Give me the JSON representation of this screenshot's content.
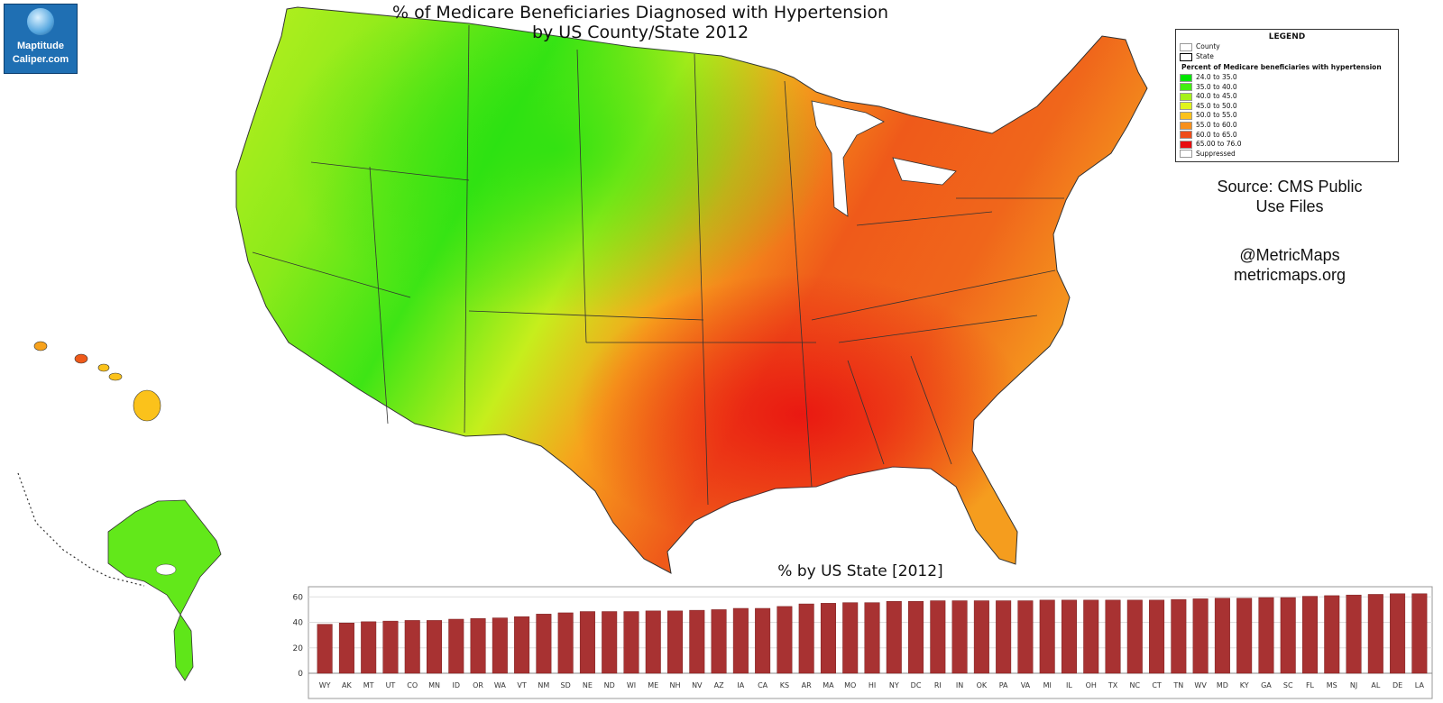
{
  "logo": {
    "line1": "Maptitude",
    "line2": "Caliper.com"
  },
  "title": {
    "line1": "% of Medicare Beneficiaries Diagnosed with Hypertension",
    "line2": "by US County/State 2012"
  },
  "legend": {
    "title": "LEGEND",
    "boundary_items": [
      "County",
      "State"
    ],
    "heading": "Percent of Medicare beneficiaries with hypertension",
    "classes": [
      {
        "label": "24.0  to 35.0",
        "color": "#00e600"
      },
      {
        "label": "35.0 to 40.0",
        "color": "#44ee11"
      },
      {
        "label": "40.0 to 45.0",
        "color": "#a6f21a"
      },
      {
        "label": "45.0 to 50.0",
        "color": "#e0f51c"
      },
      {
        "label": "50.0 to 55.0",
        "color": "#fbc21b"
      },
      {
        "label": "55.0 to 60.0",
        "color": "#f7901c"
      },
      {
        "label": "60.0 to 65.0",
        "color": "#ef4c1a"
      },
      {
        "label": "65.00 to 76.0",
        "color": "#e80c10"
      },
      {
        "label": "Suppressed",
        "color": "#ffffff"
      }
    ]
  },
  "source": {
    "line1": "Source: CMS Public",
    "line2": "Use Files"
  },
  "handle": {
    "line1": "@MetricMaps",
    "line2": "metricmaps.org"
  },
  "chart_data": {
    "type": "bar",
    "title": "% by US State [2012]",
    "categories": [
      "WY",
      "AK",
      "MT",
      "UT",
      "CO",
      "MN",
      "ID",
      "OR",
      "WA",
      "VT",
      "NM",
      "SD",
      "NE",
      "ND",
      "WI",
      "ME",
      "NH",
      "NV",
      "AZ",
      "IA",
      "CA",
      "KS",
      "AR",
      "MA",
      "MO",
      "HI",
      "NY",
      "DC",
      "RI",
      "IN",
      "OK",
      "PA",
      "VA",
      "MI",
      "IL",
      "OH",
      "TX",
      "NC",
      "CT",
      "TN",
      "WV",
      "MD",
      "KY",
      "GA",
      "SC",
      "FL",
      "MS",
      "NJ",
      "AL",
      "DE",
      "LA"
    ],
    "values": [
      38.5,
      39.5,
      40.5,
      41,
      41.5,
      41.5,
      42.5,
      43,
      43.5,
      44.5,
      46.5,
      47.5,
      48.5,
      48.5,
      48.5,
      49,
      49,
      49.5,
      50,
      51,
      51,
      52.5,
      54.5,
      55,
      55.5,
      55.5,
      56.5,
      56.5,
      57,
      57,
      57,
      57,
      57,
      57.5,
      57.5,
      57.5,
      57.5,
      57.5,
      57.5,
      58,
      58.5,
      59,
      59,
      59.5,
      59.5,
      60.5,
      61,
      61.5,
      62,
      62.5,
      62.5
    ],
    "yticks": [
      0,
      20,
      40,
      60
    ],
    "ylim": [
      0,
      68
    ],
    "bar_color": "#a83232",
    "grid": true
  }
}
